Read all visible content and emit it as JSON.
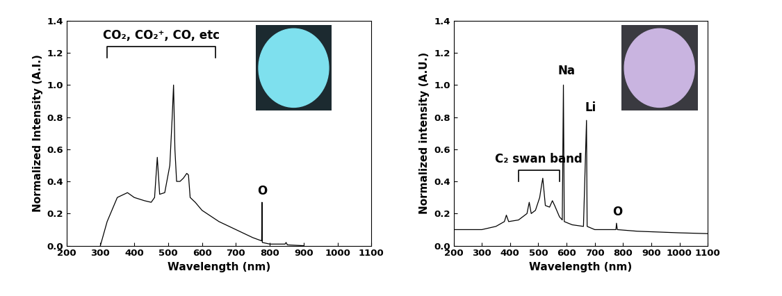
{
  "chart_data": [
    {
      "type": "line",
      "xlabel": "Wavelength (nm)",
      "ylabel": "Normalized Intensity (A.I.)",
      "x": [
        300,
        320,
        350,
        380,
        400,
        430,
        450,
        460,
        468,
        475,
        490,
        505,
        512,
        516,
        520,
        525,
        535,
        545,
        555,
        560,
        565,
        580,
        600,
        650,
        700,
        750,
        776,
        777,
        778,
        800,
        845,
        848,
        852,
        900
      ],
      "values": [
        0.0,
        0.15,
        0.3,
        0.33,
        0.3,
        0.28,
        0.27,
        0.3,
        0.55,
        0.32,
        0.33,
        0.5,
        0.8,
        1.0,
        0.6,
        0.4,
        0.4,
        0.42,
        0.45,
        0.44,
        0.3,
        0.27,
        0.22,
        0.15,
        0.1,
        0.05,
        0.03,
        0.27,
        0.02,
        0.01,
        0.01,
        0.02,
        0.005,
        0.0
      ],
      "color": "#000000",
      "xlim": [
        200,
        1100
      ],
      "xticks": [
        200,
        300,
        400,
        500,
        600,
        700,
        800,
        900,
        1000,
        1100
      ],
      "ylim": [
        0.0,
        1.4
      ],
      "yticks": [
        {
          "value": 0.0,
          "label": "0.0"
        },
        {
          "value": 0.2,
          "label": "0.2"
        },
        {
          "value": 0.4,
          "label": "0.4"
        },
        {
          "value": 0.6,
          "label": "0.6"
        },
        {
          "value": 0.8,
          "label": "0.8"
        },
        {
          "value": 1.0,
          "label": "1.0"
        },
        {
          "value": 1.2,
          "label": "1.2"
        },
        {
          "value": 1.4,
          "label": "1.4"
        }
      ],
      "annotations": [
        {
          "text": "CO₂, CO₂⁺, CO, etc",
          "x": 480,
          "y": 1.27,
          "x_range": [
            320,
            640
          ]
        },
        {
          "text": "O",
          "x": 778,
          "y": 0.3
        }
      ]
    },
    {
      "type": "line",
      "xlabel": "Wavelength (nm)",
      "ylabel": "Normalized intensity (A.U.)",
      "x": [
        200,
        300,
        350,
        380,
        387,
        395,
        430,
        460,
        468,
        475,
        490,
        505,
        512,
        516,
        525,
        540,
        550,
        558,
        575,
        585,
        589,
        592,
        620,
        660,
        670.8,
        673,
        700,
        775,
        777,
        780,
        850,
        1000,
        1100
      ],
      "values": [
        0.1,
        0.1,
        0.12,
        0.15,
        0.19,
        0.15,
        0.16,
        0.2,
        0.27,
        0.2,
        0.22,
        0.3,
        0.38,
        0.42,
        0.25,
        0.24,
        0.28,
        0.25,
        0.18,
        0.16,
        1.0,
        0.15,
        0.13,
        0.12,
        0.78,
        0.12,
        0.1,
        0.1,
        0.14,
        0.1,
        0.09,
        0.08,
        0.075
      ],
      "color": "#000000",
      "xlim": [
        200,
        1100
      ],
      "xticks": [
        200,
        300,
        400,
        500,
        600,
        700,
        800,
        900,
        1000,
        1100
      ],
      "ylim": [
        0.0,
        1.4
      ],
      "yticks": [
        {
          "value": 0.0,
          "label": "0.0"
        },
        {
          "value": 0.2,
          "label": "0.2"
        },
        {
          "value": 0.4,
          "label": "0.4"
        },
        {
          "value": 0.6,
          "label": "0.6"
        },
        {
          "value": 0.8,
          "label": "0.8"
        },
        {
          "value": 1.0,
          "label": "1.0"
        },
        {
          "value": 1.2,
          "label": "1.2"
        },
        {
          "value": 1.4,
          "label": "1.4"
        }
      ],
      "annotations": [
        {
          "text": "C₂ swan band",
          "x": 500,
          "y": 0.5,
          "x_range": [
            430,
            575
          ]
        },
        {
          "text": "Na",
          "x": 600,
          "y": 1.05
        },
        {
          "text": "Li",
          "x": 685,
          "y": 0.82
        },
        {
          "text": "O",
          "x": 780,
          "y": 0.17
        }
      ]
    }
  ]
}
